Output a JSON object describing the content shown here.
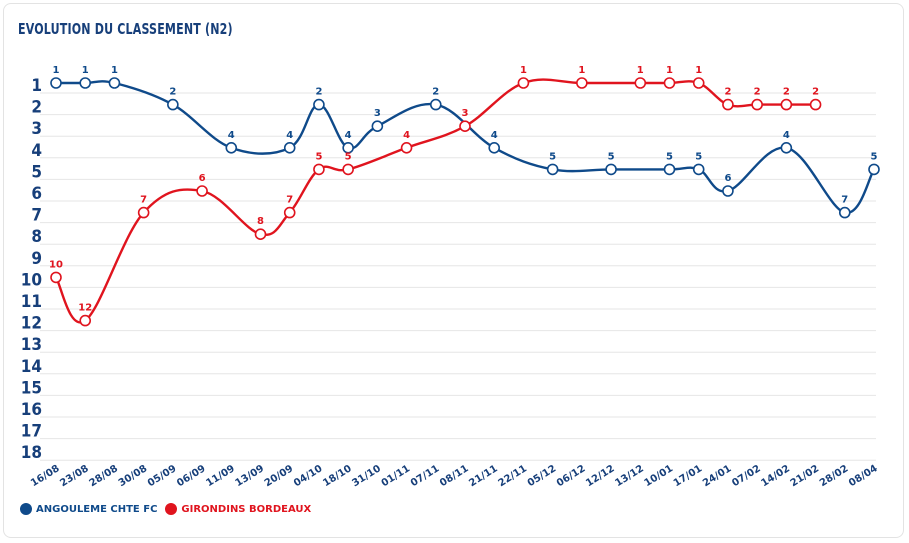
{
  "chart_data": {
    "type": "line",
    "title": "EVOLUTION DU CLASSEMENT (N2)",
    "categories": [
      "16/08",
      "23/08",
      "28/08",
      "30/08",
      "05/09",
      "06/09",
      "11/09",
      "13/09",
      "20/09",
      "04/10",
      "18/10",
      "31/10",
      "01/11",
      "07/11",
      "08/11",
      "21/11",
      "22/11",
      "05/12",
      "06/12",
      "12/12",
      "13/12",
      "10/01",
      "17/01",
      "24/01",
      "07/02",
      "14/02",
      "21/02",
      "28/02",
      "08/04"
    ],
    "y_ticks": [
      1,
      2,
      3,
      4,
      5,
      6,
      7,
      8,
      9,
      10,
      11,
      12,
      13,
      14,
      15,
      16,
      17,
      18
    ],
    "ylim": [
      1,
      18
    ],
    "y_inverted": true,
    "series": [
      {
        "name": "ANGOULEME CHTE FC",
        "color": "#0f4a8a",
        "points": [
          {
            "x": 0,
            "y": 1
          },
          {
            "x": 1,
            "y": 1
          },
          {
            "x": 2,
            "y": 1
          },
          {
            "x": 4,
            "y": 2
          },
          {
            "x": 6,
            "y": 4
          },
          {
            "x": 8,
            "y": 4
          },
          {
            "x": 9,
            "y": 2
          },
          {
            "x": 10,
            "y": 4
          },
          {
            "x": 11,
            "y": 3
          },
          {
            "x": 13,
            "y": 2
          },
          {
            "x": 15,
            "y": 4
          },
          {
            "x": 17,
            "y": 5
          },
          {
            "x": 19,
            "y": 5
          },
          {
            "x": 21,
            "y": 5
          },
          {
            "x": 22,
            "y": 5
          },
          {
            "x": 23,
            "y": 6
          },
          {
            "x": 25,
            "y": 4
          },
          {
            "x": 27,
            "y": 7
          },
          {
            "x": 28,
            "y": 5
          }
        ]
      },
      {
        "name": "GIRONDINS BORDEAUX",
        "color": "#e0141e",
        "points": [
          {
            "x": 0,
            "y": 10
          },
          {
            "x": 1,
            "y": 12
          },
          {
            "x": 3,
            "y": 7
          },
          {
            "x": 5,
            "y": 6
          },
          {
            "x": 7,
            "y": 8
          },
          {
            "x": 8,
            "y": 7
          },
          {
            "x": 9,
            "y": 5
          },
          {
            "x": 10,
            "y": 5
          },
          {
            "x": 12,
            "y": 4
          },
          {
            "x": 14,
            "y": 3
          },
          {
            "x": 16,
            "y": 1
          },
          {
            "x": 18,
            "y": 1
          },
          {
            "x": 20,
            "y": 1
          },
          {
            "x": 21,
            "y": 1
          },
          {
            "x": 22,
            "y": 1
          },
          {
            "x": 23,
            "y": 2
          },
          {
            "x": 24,
            "y": 2
          },
          {
            "x": 25,
            "y": 2
          },
          {
            "x": 26,
            "y": 2
          }
        ]
      }
    ]
  },
  "legend": [
    {
      "label": "ANGOULEME CHTE FC",
      "color": "#0f4a8a"
    },
    {
      "label": "GIRONDINS BORDEAUX",
      "color": "#e0141e"
    }
  ]
}
